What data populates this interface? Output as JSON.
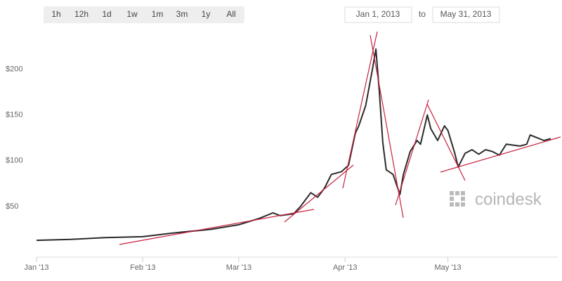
{
  "controls": {
    "range_buttons": [
      "1h",
      "12h",
      "1d",
      "1w",
      "1m",
      "3m",
      "1y",
      "All"
    ],
    "date_from": "Jan 1, 2013",
    "date_separator": "to",
    "date_to": "May 31, 2013"
  },
  "watermark": "coindesk",
  "chart_data": {
    "type": "line",
    "x": [
      0,
      10,
      20,
      31,
      40,
      51,
      59,
      65,
      69,
      71,
      75,
      77,
      80,
      82,
      84,
      86,
      89,
      91,
      93,
      94,
      96,
      98,
      99,
      100,
      101,
      102,
      104,
      106,
      107,
      109,
      111,
      112,
      114,
      115,
      117,
      119,
      120,
      122,
      123,
      125,
      127,
      129,
      131,
      133,
      135,
      137,
      141,
      143,
      144,
      146,
      148,
      150
    ],
    "series": [
      {
        "color": "#2b2b2b",
        "values": [
          13,
          14,
          16,
          17,
          21,
          25,
          30,
          37,
          43,
          40,
          42,
          50,
          65,
          60,
          70,
          85,
          88,
          95,
          130,
          138,
          160,
          200,
          222,
          175,
          120,
          90,
          85,
          63,
          85,
          110,
          122,
          118,
          150,
          135,
          122,
          138,
          133,
          108,
          93,
          108,
          112,
          107,
          112,
          110,
          106,
          118,
          116,
          118,
          128,
          125,
          122,
          124
        ]
      }
    ],
    "xlim": [
      0,
      150
    ],
    "xticks": [
      {
        "value": 0,
        "label": "Jan '13"
      },
      {
        "value": 31,
        "label": "Feb '13"
      },
      {
        "value": 59,
        "label": "Mar '13"
      },
      {
        "value": 90,
        "label": "Apr '13"
      },
      {
        "value": 120,
        "label": "May '13"
      }
    ],
    "ylim": [
      0,
      241
    ],
    "yticks": [
      {
        "value": 50,
        "label": "$50"
      },
      {
        "value": 100,
        "label": "$100"
      },
      {
        "value": 150,
        "label": "$150"
      },
      {
        "value": 200,
        "label": "$200"
      }
    ]
  }
}
